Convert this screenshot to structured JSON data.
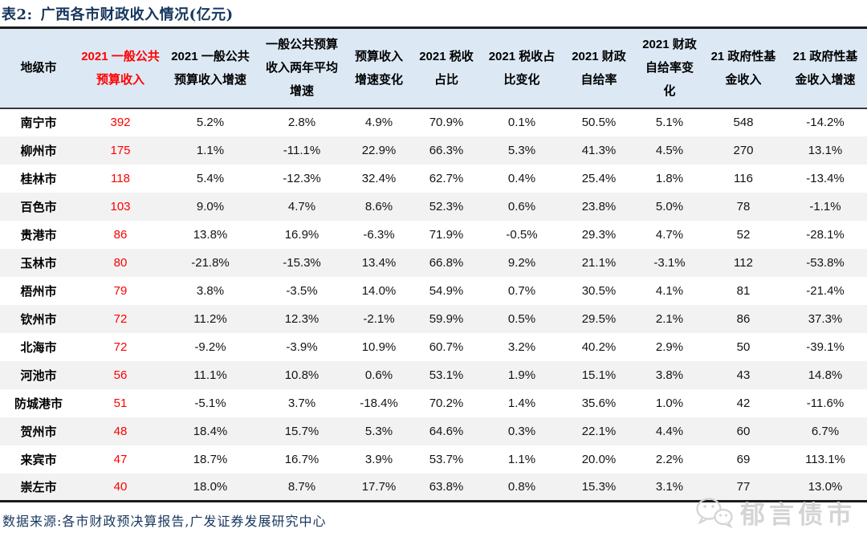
{
  "title": {
    "prefix": "表2:",
    "text": "广西各市财政收入情况(亿元)"
  },
  "table": {
    "columns": [
      {
        "label": "地级市",
        "red": false
      },
      {
        "label": "2021 一般公共预算收入",
        "red": true
      },
      {
        "label": "2021 一般公共预算收入增速",
        "red": false
      },
      {
        "label": "一般公共预算收入两年平均增速",
        "red": false
      },
      {
        "label": "预算收入增速变化",
        "red": false
      },
      {
        "label": "2021 税收占比",
        "red": false
      },
      {
        "label": "2021 税收占比变化",
        "red": false
      },
      {
        "label": "2021 财政自给率",
        "red": false
      },
      {
        "label": "2021 财政自给率变化",
        "red": false
      },
      {
        "label": "21 政府性基金收入",
        "red": false
      },
      {
        "label": "21 政府性基金收入增速",
        "red": false
      }
    ],
    "rows": [
      {
        "city": "南宁市",
        "values": [
          "392",
          "5.2%",
          "2.8%",
          "4.9%",
          "70.9%",
          "0.1%",
          "50.5%",
          "5.1%",
          "548",
          "-14.2%"
        ]
      },
      {
        "city": "柳州市",
        "values": [
          "175",
          "1.1%",
          "-11.1%",
          "22.9%",
          "66.3%",
          "5.3%",
          "41.3%",
          "4.5%",
          "270",
          "13.1%"
        ]
      },
      {
        "city": "桂林市",
        "values": [
          "118",
          "5.4%",
          "-12.3%",
          "32.4%",
          "62.7%",
          "0.4%",
          "25.4%",
          "1.8%",
          "116",
          "-13.4%"
        ]
      },
      {
        "city": "百色市",
        "values": [
          "103",
          "9.0%",
          "4.7%",
          "8.6%",
          "52.3%",
          "0.6%",
          "23.8%",
          "5.0%",
          "78",
          "-1.1%"
        ]
      },
      {
        "city": "贵港市",
        "values": [
          "86",
          "13.8%",
          "16.9%",
          "-6.3%",
          "71.9%",
          "-0.5%",
          "29.3%",
          "4.7%",
          "52",
          "-28.1%"
        ]
      },
      {
        "city": "玉林市",
        "values": [
          "80",
          "-21.8%",
          "-15.3%",
          "13.4%",
          "66.8%",
          "9.2%",
          "21.1%",
          "-3.1%",
          "112",
          "-53.8%"
        ]
      },
      {
        "city": "梧州市",
        "values": [
          "79",
          "3.8%",
          "-3.5%",
          "14.0%",
          "54.9%",
          "0.7%",
          "30.5%",
          "4.1%",
          "81",
          "-21.4%"
        ]
      },
      {
        "city": "钦州市",
        "values": [
          "72",
          "11.2%",
          "12.3%",
          "-2.1%",
          "59.9%",
          "0.5%",
          "29.5%",
          "2.1%",
          "86",
          "37.3%"
        ]
      },
      {
        "city": "北海市",
        "values": [
          "72",
          "-9.2%",
          "-3.9%",
          "10.9%",
          "60.7%",
          "3.2%",
          "40.2%",
          "2.9%",
          "50",
          "-39.1%"
        ]
      },
      {
        "city": "河池市",
        "values": [
          "56",
          "11.1%",
          "10.8%",
          "0.6%",
          "53.1%",
          "1.9%",
          "15.1%",
          "3.8%",
          "43",
          "14.8%"
        ]
      },
      {
        "city": "防城港市",
        "values": [
          "51",
          "-5.1%",
          "3.7%",
          "-18.4%",
          "70.2%",
          "1.4%",
          "35.6%",
          "1.0%",
          "42",
          "-11.6%"
        ]
      },
      {
        "city": "贺州市",
        "values": [
          "48",
          "18.4%",
          "15.7%",
          "5.3%",
          "64.6%",
          "0.3%",
          "22.1%",
          "4.4%",
          "60",
          "6.7%"
        ]
      },
      {
        "city": "来宾市",
        "values": [
          "47",
          "18.7%",
          "16.7%",
          "3.9%",
          "53.7%",
          "1.1%",
          "20.0%",
          "2.2%",
          "69",
          "113.1%"
        ]
      },
      {
        "city": "崇左市",
        "values": [
          "40",
          "18.0%",
          "8.7%",
          "17.7%",
          "63.8%",
          "0.8%",
          "15.3%",
          "3.1%",
          "77",
          "13.0%"
        ]
      }
    ]
  },
  "footer": {
    "source": "数据来源:各市财政预决算报告,广发证券发展研究中心"
  },
  "watermark": {
    "label": "郁言债市",
    "icon": "wechat-icon"
  },
  "colors": {
    "accent_red": "#FF0000",
    "title_navy": "#17375E",
    "header_bg": "#DCE9F5",
    "alt_row_bg": "#F2F2F2",
    "watermark_gray": "#D4D4D4"
  }
}
